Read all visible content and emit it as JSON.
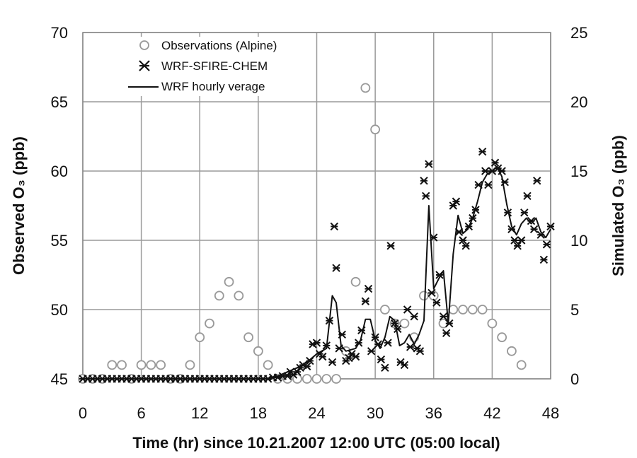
{
  "chart_data": {
    "type": "scatter",
    "xlabel": "Time (hr) since 10.21.2007 12:00 UTC (05:00 local)",
    "ylabel_left": "Observed O₃ (ppb)",
    "ylabel_right": "Simulated O₃ (ppb)",
    "xlim": [
      0,
      48
    ],
    "xticks": [
      0,
      6,
      12,
      18,
      24,
      30,
      36,
      42,
      48
    ],
    "ylim_left": [
      45,
      70
    ],
    "yticks_left": [
      45,
      50,
      55,
      60,
      65,
      70
    ],
    "ylim_right": [
      0,
      25
    ],
    "yticks_right": [
      0,
      5,
      10,
      15,
      20,
      25
    ],
    "grid": true,
    "legend_position": "top-left",
    "series": [
      {
        "name": "Observations (Alpine)",
        "kind": "markers",
        "marker": "open-circle",
        "color": "#999999",
        "axis": "left",
        "points": [
          [
            0,
            45
          ],
          [
            1,
            45
          ],
          [
            2,
            45
          ],
          [
            3,
            46
          ],
          [
            4,
            46
          ],
          [
            5,
            45
          ],
          [
            6,
            46
          ],
          [
            7,
            46
          ],
          [
            8,
            46
          ],
          [
            9,
            45
          ],
          [
            10,
            45
          ],
          [
            11,
            46
          ],
          [
            12,
            48
          ],
          [
            13,
            49
          ],
          [
            14,
            51
          ],
          [
            15,
            52
          ],
          [
            16,
            51
          ],
          [
            17,
            48
          ],
          [
            18,
            47
          ],
          [
            19,
            46
          ],
          [
            20,
            45
          ],
          [
            21,
            45
          ],
          [
            22,
            45
          ],
          [
            23,
            45
          ],
          [
            24,
            45
          ],
          [
            25,
            45
          ],
          [
            26,
            45
          ],
          [
            27,
            47
          ],
          [
            28,
            52
          ],
          [
            29,
            66
          ],
          [
            30,
            63
          ],
          [
            31,
            50
          ],
          [
            32,
            49
          ],
          [
            33,
            49
          ],
          [
            34,
            48
          ],
          [
            35,
            51
          ],
          [
            36,
            51
          ],
          [
            37,
            49
          ],
          [
            38,
            50
          ],
          [
            39,
            50
          ],
          [
            40,
            50
          ],
          [
            41,
            50
          ],
          [
            42,
            49
          ],
          [
            43,
            48
          ],
          [
            44,
            47
          ],
          [
            45,
            46
          ]
        ]
      },
      {
        "name": "WRF-SFIRE-CHEM",
        "kind": "markers",
        "marker": "asterisk",
        "color": "#111111",
        "axis": "right",
        "points": [
          [
            0,
            0
          ],
          [
            0.5,
            0
          ],
          [
            1,
            0
          ],
          [
            1.5,
            0
          ],
          [
            2,
            0
          ],
          [
            2.5,
            0
          ],
          [
            3,
            0
          ],
          [
            3.5,
            0
          ],
          [
            4,
            0
          ],
          [
            4.5,
            0
          ],
          [
            5,
            0
          ],
          [
            5.5,
            0
          ],
          [
            6,
            0
          ],
          [
            6.5,
            0
          ],
          [
            7,
            0
          ],
          [
            7.5,
            0
          ],
          [
            8,
            0
          ],
          [
            8.5,
            0
          ],
          [
            9,
            0
          ],
          [
            9.5,
            0
          ],
          [
            10,
            0
          ],
          [
            10.5,
            0
          ],
          [
            11,
            0
          ],
          [
            11.5,
            0
          ],
          [
            12,
            0
          ],
          [
            12.5,
            0
          ],
          [
            13,
            0
          ],
          [
            13.5,
            0
          ],
          [
            14,
            0
          ],
          [
            14.5,
            0
          ],
          [
            15,
            0
          ],
          [
            15.5,
            0
          ],
          [
            16,
            0
          ],
          [
            16.5,
            0
          ],
          [
            17,
            0
          ],
          [
            17.5,
            0
          ],
          [
            18,
            0
          ],
          [
            18.5,
            0
          ],
          [
            19,
            0
          ],
          [
            19.5,
            0.1
          ],
          [
            20,
            0.1
          ],
          [
            20.5,
            0.2
          ],
          [
            21,
            0.2
          ],
          [
            21.3,
            0.5
          ],
          [
            21.6,
            0.3
          ],
          [
            22,
            0.5
          ],
          [
            22.3,
            0.8
          ],
          [
            22.6,
            1.0
          ],
          [
            23,
            0.9
          ],
          [
            23.3,
            1.3
          ],
          [
            23.6,
            2.5
          ],
          [
            24,
            2.6
          ],
          [
            24.3,
            1.8
          ],
          [
            24.6,
            1.6
          ],
          [
            25,
            2.4
          ],
          [
            25.3,
            4.2
          ],
          [
            25.6,
            1.2
          ],
          [
            25.8,
            11.0
          ],
          [
            26,
            8.0
          ],
          [
            26.3,
            2.2
          ],
          [
            26.6,
            3.2
          ],
          [
            27,
            1.3
          ],
          [
            27.3,
            1.5
          ],
          [
            27.6,
            1.8
          ],
          [
            28,
            1.6
          ],
          [
            28.3,
            2.6
          ],
          [
            28.6,
            3.5
          ],
          [
            29,
            5.6
          ],
          [
            29.3,
            6.5
          ],
          [
            29.6,
            2.0
          ],
          [
            30,
            3.0
          ],
          [
            30.3,
            2.5
          ],
          [
            30.6,
            1.4
          ],
          [
            31,
            0.8
          ],
          [
            31.3,
            2.6
          ],
          [
            31.6,
            9.6
          ],
          [
            32,
            4.0
          ],
          [
            32.3,
            3.6
          ],
          [
            32.6,
            1.2
          ],
          [
            33,
            1.0
          ],
          [
            33.3,
            5.0
          ],
          [
            33.6,
            2.3
          ],
          [
            34,
            4.5
          ],
          [
            34.3,
            2.2
          ],
          [
            34.6,
            2.0
          ],
          [
            35,
            14.3
          ],
          [
            35.2,
            13.2
          ],
          [
            35.5,
            15.5
          ],
          [
            35.8,
            6.2
          ],
          [
            36,
            10.2
          ],
          [
            36.3,
            5.5
          ],
          [
            36.6,
            7.5
          ],
          [
            37,
            4.5
          ],
          [
            37.3,
            3.3
          ],
          [
            37.6,
            4.0
          ],
          [
            38,
            12.5
          ],
          [
            38.3,
            12.8
          ],
          [
            38.6,
            10.6
          ],
          [
            39,
            10.0
          ],
          [
            39.3,
            9.6
          ],
          [
            39.6,
            11.0
          ],
          [
            40,
            11.6
          ],
          [
            40.3,
            12.2
          ],
          [
            40.6,
            14.0
          ],
          [
            41,
            16.4
          ],
          [
            41.3,
            15.0
          ],
          [
            41.6,
            14.0
          ],
          [
            42,
            15.0
          ],
          [
            42.3,
            15.6
          ],
          [
            42.6,
            15.2
          ],
          [
            43,
            15.0
          ],
          [
            43.3,
            14.2
          ],
          [
            43.6,
            12.0
          ],
          [
            44,
            10.8
          ],
          [
            44.3,
            10.0
          ],
          [
            44.6,
            9.6
          ],
          [
            45,
            10.0
          ],
          [
            45.3,
            12.0
          ],
          [
            45.6,
            13.2
          ],
          [
            46,
            11.4
          ],
          [
            46.3,
            10.8
          ],
          [
            46.6,
            14.3
          ],
          [
            47,
            10.4
          ],
          [
            47.3,
            8.6
          ],
          [
            47.6,
            9.7
          ],
          [
            48,
            11.0
          ]
        ]
      },
      {
        "name": "WRF hourly verage",
        "kind": "line",
        "color": "#111111",
        "axis": "right",
        "points": [
          [
            0,
            0
          ],
          [
            19,
            0
          ],
          [
            20,
            0.2
          ],
          [
            21,
            0.5
          ],
          [
            22,
            0.8
          ],
          [
            23,
            1.2
          ],
          [
            24,
            1.8
          ],
          [
            25,
            2.2
          ],
          [
            25.6,
            6.0
          ],
          [
            26,
            5.5
          ],
          [
            26.5,
            2.4
          ],
          [
            27,
            2.0
          ],
          [
            28,
            2.2
          ],
          [
            28.5,
            2.8
          ],
          [
            29,
            4.3
          ],
          [
            29.5,
            4.3
          ],
          [
            30,
            2.8
          ],
          [
            30.5,
            2.2
          ],
          [
            31,
            3.0
          ],
          [
            31.5,
            4.5
          ],
          [
            32,
            4.2
          ],
          [
            32.5,
            2.4
          ],
          [
            33,
            2.6
          ],
          [
            33.5,
            3.2
          ],
          [
            34,
            2.5
          ],
          [
            34.5,
            3.2
          ],
          [
            35,
            4.2
          ],
          [
            35.5,
            12.5
          ],
          [
            36,
            6.5
          ],
          [
            36.5,
            7.2
          ],
          [
            37,
            7.8
          ],
          [
            37.5,
            4.0
          ],
          [
            38,
            9.0
          ],
          [
            38.5,
            11.8
          ],
          [
            39,
            10.5
          ],
          [
            39.5,
            10.8
          ],
          [
            40,
            11.6
          ],
          [
            40.5,
            12.8
          ],
          [
            41,
            14.2
          ],
          [
            41.5,
            14.8
          ],
          [
            42,
            15.0
          ],
          [
            42.5,
            15.3
          ],
          [
            43,
            14.6
          ],
          [
            43.5,
            12.6
          ],
          [
            44,
            11.0
          ],
          [
            44.5,
            10.4
          ],
          [
            45,
            11.2
          ],
          [
            45.5,
            11.6
          ],
          [
            46,
            11.2
          ],
          [
            46.5,
            11.6
          ],
          [
            47,
            10.6
          ],
          [
            47.5,
            10.2
          ],
          [
            48,
            10.8
          ]
        ]
      }
    ]
  }
}
